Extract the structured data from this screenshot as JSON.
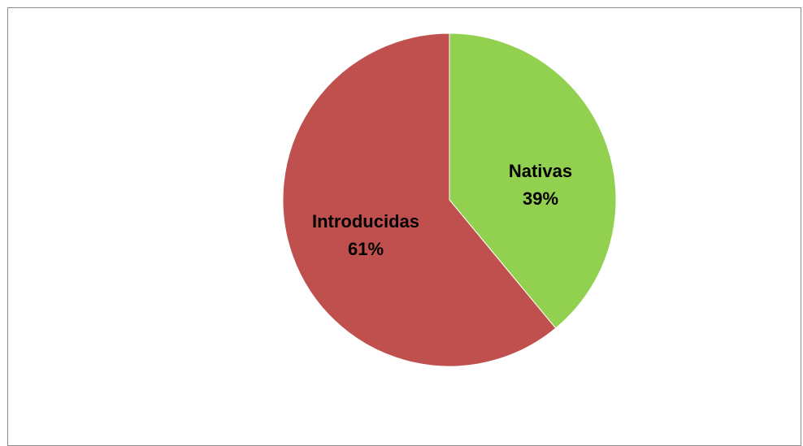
{
  "chart_data": {
    "type": "pie",
    "title": "",
    "slices": [
      {
        "name": "Nativas",
        "value": 39,
        "percent_label": "39%",
        "color": "#92d050"
      },
      {
        "name": "Introducidas",
        "value": 61,
        "percent_label": "61%",
        "color": "#c0504d"
      }
    ],
    "start": "12 o'clock",
    "direction": "clockwise",
    "legend": "none",
    "data_labels": "inside"
  }
}
